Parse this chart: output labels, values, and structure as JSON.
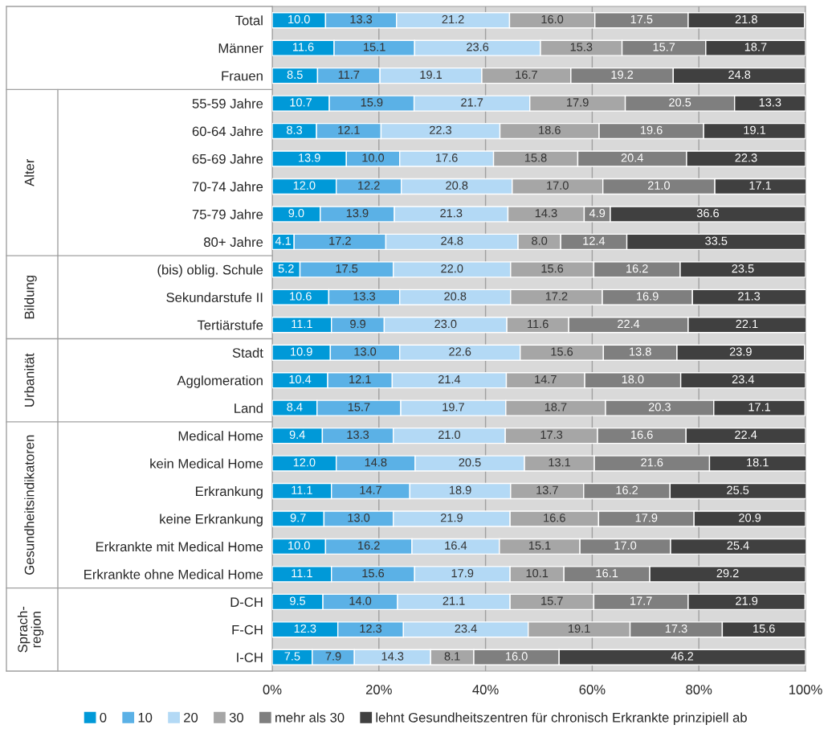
{
  "chart_data": {
    "type": "bar",
    "orientation": "horizontal",
    "stacked": true,
    "legend": "bottom",
    "grid": "x",
    "categories": [
      "Total",
      "Männer",
      "Frauen",
      "55-59 Jahre",
      "60-64 Jahre",
      "65-69 Jahre",
      "70-74 Jahre",
      "75-79 Jahre",
      "80+ Jahre",
      "(bis) oblig. Schule",
      "Sekundarstufe II",
      "Tertiärstufe",
      "Stadt",
      "Agglomeration",
      "Land",
      "Medical Home",
      "kein Medical Home",
      "Erkrankung",
      "keine Erkrankung",
      "Erkrankte mit Medical Home",
      "Erkrankte ohne Medical Home",
      "D-CH",
      "F-CH",
      "I-CH"
    ],
    "series": [
      {
        "name": "0",
        "color": "#0099d8",
        "values": [
          10,
          11.6,
          8.5,
          10.7,
          8.3,
          13.9,
          12,
          9,
          4.1,
          5.2,
          10.6,
          11.1,
          10.9,
          10.4,
          8.4,
          9.4,
          12,
          11.1,
          9.7,
          10,
          11.1,
          9.5,
          12.3,
          7.5
        ],
        "value_labels": [
          "10.0",
          "11.6",
          "8.5",
          "10.7",
          "8.3",
          "13.9",
          "12.0",
          "9.0",
          "4.1",
          "5.2",
          "10.6",
          "11.1",
          "10.9",
          "10.4",
          "8.4",
          "9.4",
          "12.0",
          "11.1",
          "9.7",
          "10.0",
          "11.1",
          "9.5",
          "12.3",
          "7.5"
        ]
      },
      {
        "name": "10",
        "color": "#5bb1e6",
        "values": [
          13.3,
          15.1,
          11.7,
          15.9,
          12.1,
          10,
          12.2,
          13.9,
          17.2,
          17.5,
          13.3,
          9.9,
          13,
          12.1,
          15.7,
          13.3,
          14.8,
          14.7,
          13,
          16.2,
          15.6,
          14,
          12.3,
          7.9
        ],
        "value_labels": [
          "13.3",
          "15.1",
          "11.7",
          "15.9",
          "12.1",
          "10.0",
          "12.2",
          "13.9",
          "17.2",
          "17.5",
          "13.3",
          "9.9",
          "13.0",
          "12.1",
          "15.7",
          "13.3",
          "14.8",
          "14.7",
          "13.0",
          "16.2",
          "15.6",
          "14.0",
          "12.3",
          "7.9"
        ]
      },
      {
        "name": "20",
        "color": "#b3d9f5",
        "values": [
          21.2,
          23.6,
          19.1,
          21.7,
          22.3,
          17.6,
          20.8,
          21.3,
          24.8,
          22,
          20.8,
          23,
          22.6,
          21.4,
          19.7,
          21,
          20.5,
          18.9,
          21.9,
          16.4,
          17.9,
          21.1,
          23.4,
          14.3
        ],
        "value_labels": [
          "21.2",
          "23.6",
          "19.1",
          "21.7",
          "22.3",
          "17.6",
          "20.8",
          "21.3",
          "24.8",
          "22.0",
          "20.8",
          "23.0",
          "22.6",
          "21.4",
          "19.7",
          "21.0",
          "20.5",
          "18.9",
          "21.9",
          "16.4",
          "17.9",
          "21.1",
          "23.4",
          "14.3"
        ]
      },
      {
        "name": "30",
        "color": "#a6a6a6",
        "values": [
          16,
          15.3,
          16.7,
          17.9,
          18.6,
          15.8,
          17,
          14.3,
          8,
          15.6,
          17.2,
          11.6,
          15.6,
          14.7,
          18.7,
          17.3,
          13.1,
          13.7,
          16.6,
          15.1,
          10.1,
          15.7,
          19.1,
          8.1
        ],
        "value_labels": [
          "16.0",
          "15.3",
          "16.7",
          "17.9",
          "18.6",
          "15.8",
          "17.0",
          "14.3",
          "8.0",
          "15.6",
          "17.2",
          "11.6",
          "15.6",
          "14.7",
          "18.7",
          "17.3",
          "13.1",
          "13.7",
          "16.6",
          "15.1",
          "10.1",
          "15.7",
          "19.1",
          "8.1"
        ]
      },
      {
        "name": "mehr als 30",
        "color": "#7f7f7f",
        "values": [
          17.5,
          15.7,
          19.2,
          20.5,
          19.6,
          20.4,
          21,
          4.9,
          12.4,
          16.2,
          16.9,
          22.4,
          13.8,
          18,
          20.3,
          16.6,
          21.6,
          16.2,
          17.9,
          17,
          16.1,
          17.7,
          17.3,
          16
        ],
        "value_labels": [
          "17.5",
          "15.7",
          "19.2",
          "20.5",
          "19.6",
          "20.4",
          "21.0",
          "4.9",
          "12.4",
          "16.2",
          "16.9",
          "22.4",
          "13.8",
          "18.0",
          "20.3",
          "16.6",
          "21.6",
          "16.2",
          "17.9",
          "17.0",
          "16.1",
          "17.7",
          "17.3",
          "16.0"
        ]
      },
      {
        "name": "lehnt Gesundheitszentren für chronisch Erkrankte prinzipiell ab",
        "color": "#404040",
        "values": [
          21.8,
          18.7,
          24.8,
          13.3,
          19.1,
          22.3,
          17.1,
          36.6,
          33.5,
          23.5,
          21.3,
          22.1,
          23.9,
          23.4,
          17.1,
          22.4,
          18.1,
          25.5,
          20.9,
          25.4,
          29.2,
          21.9,
          15.6,
          46.2
        ],
        "value_labels": [
          "21.8",
          "18.7",
          "24.8",
          "13.3",
          "19.1",
          "22.3",
          "17.1",
          "36.6",
          "33.5",
          "23.5",
          "21.3",
          "22.1",
          "23.9",
          "23.4",
          "17.1",
          "22.4",
          "18.1",
          "25.5",
          "20.9",
          "25.4",
          "29.2",
          "21.9",
          "15.6",
          "46.2"
        ]
      }
    ],
    "xlim": [
      0,
      100
    ],
    "xticks": [
      {
        "value": 0,
        "label": "0%"
      },
      {
        "value": 20,
        "label": "20%"
      },
      {
        "value": 40,
        "label": "40%"
      },
      {
        "value": 60,
        "label": "60%"
      },
      {
        "value": 80,
        "label": "80%"
      },
      {
        "value": 100,
        "label": "100%"
      }
    ],
    "annotations": [
      "Alter",
      "Bildung",
      "Urbanität",
      "Gesundheitsindikatoren",
      "Sprach-\nregion"
    ]
  }
}
